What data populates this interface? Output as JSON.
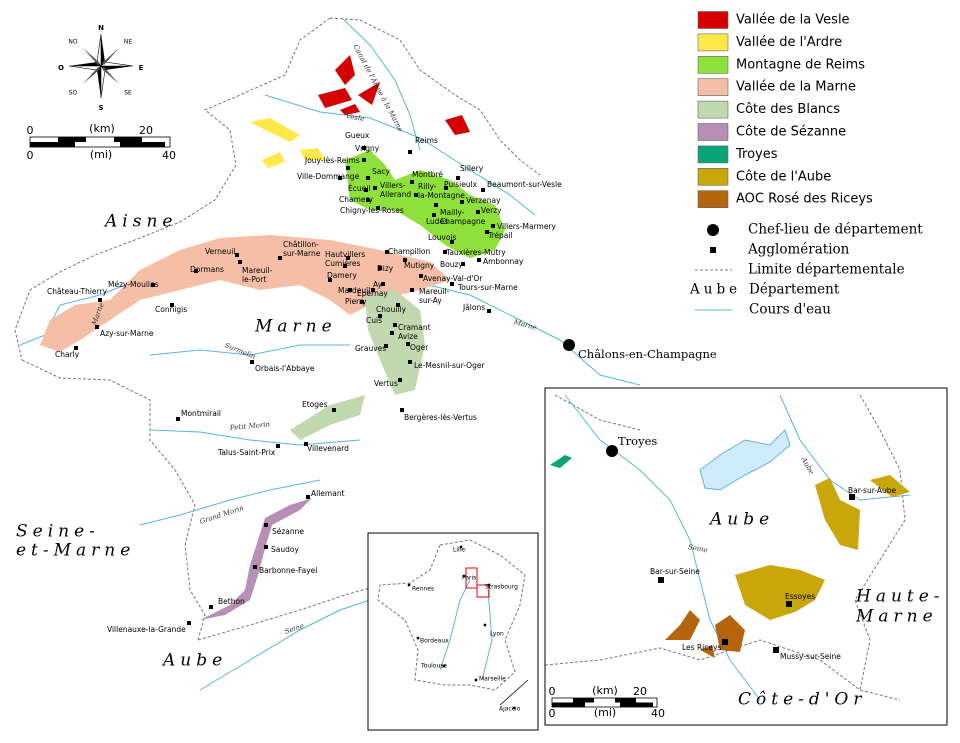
{
  "legend": {
    "regions": [
      {
        "label": "Vallée de la Vesle",
        "color": "#d40000"
      },
      {
        "label": "Vallée de l'Ardre",
        "color": "#ffe84a"
      },
      {
        "label": "Montagne de Reims",
        "color": "#8ee03a"
      },
      {
        "label": "Vallée de la Marne",
        "color": "#f4bfa6"
      },
      {
        "label": "Côte des Blancs",
        "color": "#c2d9b0"
      },
      {
        "label": "Côte de Sézanne",
        "color": "#b78fb5"
      },
      {
        "label": "Troyes",
        "color": "#0aa37a"
      },
      {
        "label": "Côte de l'Aube",
        "color": "#c9a60a"
      },
      {
        "label": "AOC Rosé des Riceys",
        "color": "#b5650e"
      }
    ],
    "symbols": {
      "prefecture": "Chef-lieu de département",
      "town": "Agglomération",
      "boundary": "Limite départementale",
      "department_sample": "Aube",
      "department": "Département",
      "river": "Cours d'eau"
    }
  },
  "compass": [
    "N",
    "NE",
    "E",
    "SE",
    "S",
    "SO",
    "O",
    "NO"
  ],
  "scale": {
    "km": {
      "start": 0,
      "unit": "(km)",
      "end": 20
    },
    "mi": {
      "start": 0,
      "unit": "(mi)",
      "end": 40
    }
  },
  "departments": {
    "aisne": "Aisne",
    "marne": "Marne",
    "seine_et_marne": [
      "Seine-",
      "et-Marne"
    ],
    "aube": "Aube"
  },
  "rivers": [
    "Vesle",
    "Canal de l'Aisne à la Marne",
    "Marne",
    "Marne",
    "Surmelin",
    "Petit Morin",
    "Grand Morin",
    "Seine"
  ],
  "prefecture": "Châlons-en-Champagne",
  "towns": [
    "Reims",
    "Gueux",
    "Vrigny",
    "Jouy-lès-Reims",
    "Ville-Dommange",
    "Sacy",
    "Écueil",
    "Chamery",
    [
      "Villers-",
      "Allerand"
    ],
    "Montbré",
    [
      "Rilly-",
      "la-Montagne"
    ],
    "Chigny-les-Roses",
    "Sillery",
    "Puisieulx",
    "Beaumont-sur-Vesle",
    "Verzenay",
    "Ludes",
    [
      "Mailly-",
      "Champagne"
    ],
    "Verzy",
    "Villers-Marmery",
    "Louvois",
    "Trépail",
    "Tauxières-Mutry",
    "Bouzy",
    "Ambonnay",
    "Verneuil",
    [
      "Châtillon-",
      "sur-Marne"
    ],
    "Dormans",
    [
      "Mareuil-",
      "le-Port"
    ],
    "Hautvillers",
    "Cumières",
    "Champillon",
    "Dizy",
    "Mutigny",
    "Avenay-Val-d'Or",
    "Damery",
    "Mardeuil",
    "Épernay",
    "Ay",
    [
      "Mareuil-",
      "sur-Ay"
    ],
    "Tours-sur-Marne",
    "Pierry",
    "Chouilly",
    "Jâlons",
    "Château-Thierry",
    "Mézy-Moulins",
    "Connigis",
    "Azy-sur-Marne",
    "Charly",
    "Cuis",
    "Cramant",
    "Avize",
    "Grauves",
    "Oger",
    "Le-Mesnil-sur-Oger",
    "Orbais-l'Abbaye",
    "Vertus",
    "Montmirail",
    "Etoges",
    "Bergères-lès-Vertus",
    "Talus-Saint-Prix",
    "Villevenard",
    "Allemant",
    "Sézanne",
    "Saudoy",
    "Barbonne-Fayel",
    "Bethon",
    "Villenauxe-la-Grande"
  ],
  "france_inset": {
    "towns": [
      "Lille",
      "Paris",
      "Strasbourg",
      "Rennes",
      "Lyon",
      "Bordeaux",
      "Toulouse",
      "Marseille",
      "Ajaccio"
    ]
  },
  "aube_inset": {
    "prefecture": "Troyes",
    "towns": [
      "Bar-sur-Aube",
      "Bar-sur-Seine",
      "Essoyes",
      "Les Riceys",
      "Mussy-sur-Seine"
    ],
    "departments": {
      "aube": "Aube",
      "haute_marne": [
        "Haute-",
        "Marne"
      ],
      "cote_dor": "Côte-d'Or"
    },
    "rivers": [
      "Seine",
      "Aube"
    ],
    "scale": {
      "km": {
        "start": 0,
        "unit": "(km)",
        "end": 20
      },
      "mi": {
        "start": 0,
        "unit": "(mi)",
        "end": 40
      }
    }
  }
}
